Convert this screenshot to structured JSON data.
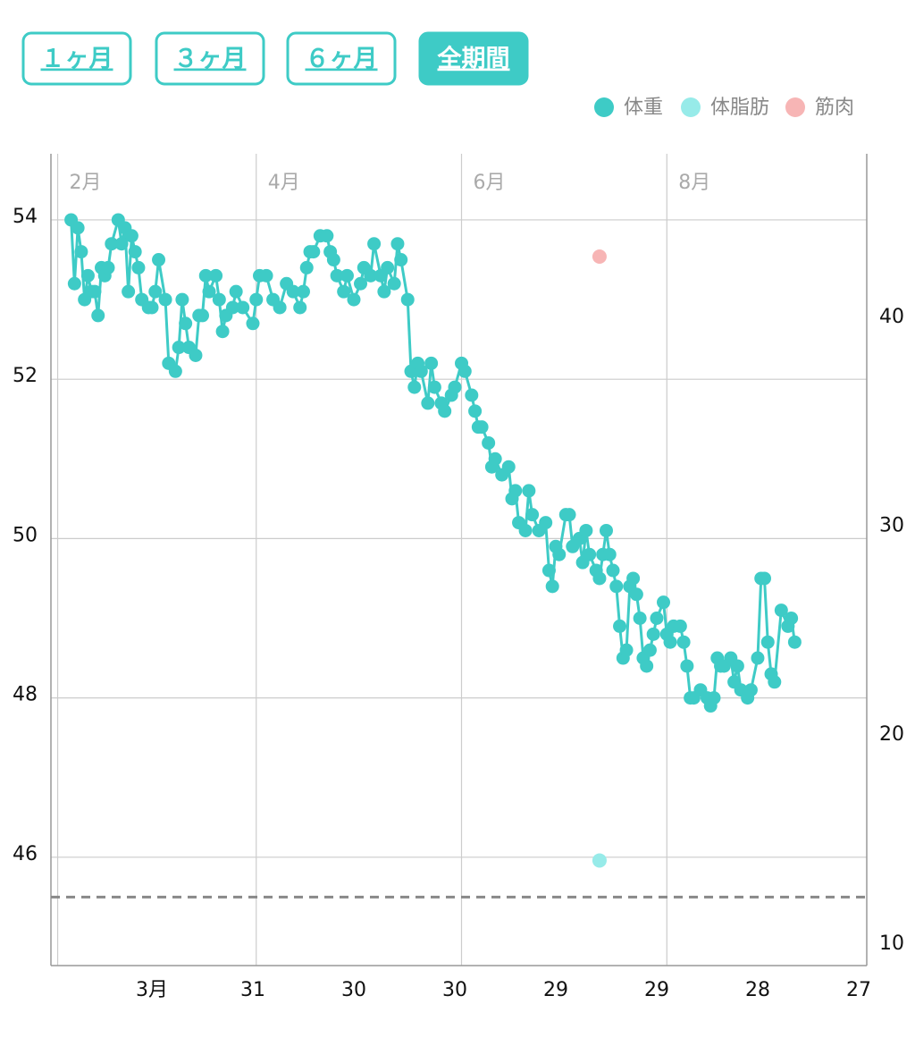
{
  "buttons": [
    "１ヶ月",
    "３ヶ月",
    "６ヶ月",
    "全期間"
  ],
  "active_button": 3,
  "chart_data": {
    "type": "line",
    "series": [
      {
        "name": "体重",
        "color": "#3ecbc6",
        "axis": "y",
        "x": [
          36,
          37,
          38,
          39,
          40,
          41,
          42,
          43,
          44,
          45,
          46,
          47,
          48,
          50,
          51,
          52,
          53,
          54,
          55,
          56,
          57,
          59,
          60,
          61,
          62,
          64,
          65,
          67,
          68,
          69,
          70,
          71,
          73,
          74,
          75,
          76,
          77,
          79,
          80,
          81,
          82,
          84,
          85,
          87,
          90,
          91,
          92,
          94,
          96,
          98,
          100,
          102,
          104,
          105,
          106,
          107,
          108,
          110,
          112,
          113,
          114,
          115,
          117,
          118,
          120,
          122,
          123,
          125,
          126,
          128,
          129,
          130,
          132,
          133,
          134,
          136,
          137,
          138,
          139,
          140,
          142,
          143,
          144,
          146,
          147,
          149,
          150,
          152,
          153,
          155,
          156,
          157,
          158,
          160,
          161,
          162,
          164,
          166,
          167,
          168,
          169,
          171,
          172,
          173,
          175,
          177,
          178,
          179,
          180,
          181,
          183,
          184,
          185,
          187,
          188,
          189,
          190,
          192,
          193,
          194,
          195,
          196,
          197,
          198,
          199,
          200,
          201,
          202,
          203,
          204,
          205,
          206,
          207,
          208,
          209,
          210,
          212,
          213,
          214,
          215,
          217,
          218,
          219,
          220,
          221,
          223,
          225,
          226,
          227,
          228,
          229,
          230,
          232,
          233,
          234,
          235,
          237,
          238,
          240,
          241,
          242,
          243,
          244,
          245,
          247,
          249,
          250,
          251
        ],
        "values": [
          54.0,
          53.2,
          53.9,
          53.6,
          53.0,
          53.3,
          53.1,
          53.1,
          52.8,
          53.4,
          53.3,
          53.4,
          53.7,
          54.0,
          53.7,
          53.9,
          53.1,
          53.8,
          53.6,
          53.4,
          53.0,
          52.9,
          52.9,
          53.1,
          53.5,
          53.0,
          52.2,
          52.1,
          52.4,
          53.0,
          52.7,
          52.4,
          52.3,
          52.8,
          52.8,
          53.3,
          53.1,
          53.3,
          53.0,
          52.6,
          52.8,
          52.9,
          53.1,
          52.9,
          52.7,
          53.0,
          53.3,
          53.3,
          53.0,
          52.9,
          53.2,
          53.1,
          52.9,
          53.1,
          53.4,
          53.6,
          53.6,
          53.8,
          53.8,
          53.6,
          53.5,
          53.3,
          53.1,
          53.3,
          53.0,
          53.2,
          53.4,
          53.3,
          53.7,
          53.3,
          53.1,
          53.4,
          53.2,
          53.7,
          53.5,
          53.0,
          52.1,
          51.9,
          52.2,
          52.1,
          51.7,
          52.2,
          51.9,
          51.7,
          51.6,
          51.8,
          51.9,
          52.2,
          52.1,
          51.8,
          51.6,
          51.4,
          51.4,
          51.2,
          50.9,
          51.0,
          50.8,
          50.9,
          50.5,
          50.6,
          50.2,
          50.1,
          50.6,
          50.3,
          50.1,
          50.2,
          49.6,
          49.4,
          49.9,
          49.8,
          50.3,
          50.3,
          49.9,
          50.0,
          49.7,
          50.1,
          49.8,
          49.6,
          49.5,
          49.8,
          50.1,
          49.8,
          49.6,
          49.4,
          48.9,
          48.5,
          48.6,
          49.4,
          49.5,
          49.3,
          49.0,
          48.5,
          48.4,
          48.6,
          48.8,
          49.0,
          49.2,
          48.8,
          48.7,
          48.9,
          48.9,
          48.7,
          48.4,
          48.0,
          48.0,
          48.1,
          48.0,
          47.9,
          48.0,
          48.5,
          48.4,
          48.4,
          48.5,
          48.2,
          48.4,
          48.1,
          48.0,
          48.1,
          48.5,
          49.5,
          49.5,
          48.7,
          48.3,
          48.2,
          49.1,
          48.9,
          49.0,
          48.7
        ]
      },
      {
        "name": "体脂肪",
        "color": "#97ebe9",
        "axis": "y2",
        "x": [
          193
        ],
        "values": [
          14.0
        ]
      },
      {
        "name": "筋肉",
        "color": "#f7b5b5",
        "axis": "y2",
        "x": [
          193
        ],
        "values": [
          42.9
        ]
      }
    ],
    "xlim": [
      30,
      272.4
    ],
    "xticks": [
      {
        "value": 60,
        "label": "3月"
      },
      {
        "value": 90,
        "label": "31"
      },
      {
        "value": 120,
        "label": "30"
      },
      {
        "value": 150,
        "label": "30"
      },
      {
        "value": 180,
        "label": "29"
      },
      {
        "value": 210,
        "label": "29"
      },
      {
        "value": 240,
        "label": "28"
      },
      {
        "value": 270,
        "label": "27"
      }
    ],
    "xticks_top": [
      {
        "value": 32,
        "label": "2月"
      },
      {
        "value": 91,
        "label": "4月"
      },
      {
        "value": 152,
        "label": "6月"
      },
      {
        "value": 213,
        "label": "8月"
      }
    ],
    "ylim": [
      44.64,
      54.83
    ],
    "yticks": [
      46,
      48,
      50,
      52,
      54
    ],
    "y2lim": [
      8.97,
      47.82
    ],
    "y2ticks": [
      10,
      20,
      30,
      40
    ],
    "reference_line": 45.5,
    "grid": true,
    "legend": "top-right"
  }
}
